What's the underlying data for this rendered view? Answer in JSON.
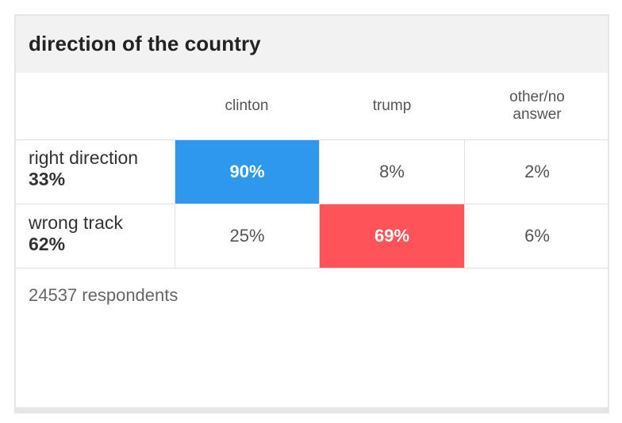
{
  "title": "direction of the country",
  "columns": [
    "clinton",
    "trump",
    "other/no answer"
  ],
  "rows": [
    {
      "label": "right direction",
      "share": "33%",
      "values": [
        "90%",
        "8%",
        "2%"
      ]
    },
    {
      "label": "wrong track",
      "share": "62%",
      "values": [
        "25%",
        "69%",
        "6%"
      ]
    }
  ],
  "footnote": "24537 respondents",
  "colors": {
    "clinton": "#2e98ee",
    "trump": "#fd5359",
    "header_bg": "#f2f2f2"
  },
  "chart_data": {
    "type": "table",
    "title": "direction of the country",
    "categories": [
      "clinton",
      "trump",
      "other/no answer"
    ],
    "series": [
      {
        "name": "right direction",
        "share": 33,
        "values": [
          90,
          8,
          2
        ]
      },
      {
        "name": "wrong track",
        "share": 62,
        "values": [
          25,
          69,
          6
        ]
      }
    ],
    "highlight": [
      {
        "row": "right direction",
        "column": "clinton",
        "color": "#2e98ee"
      },
      {
        "row": "wrong track",
        "column": "trump",
        "color": "#fd5359"
      }
    ],
    "respondents": 24537
  }
}
